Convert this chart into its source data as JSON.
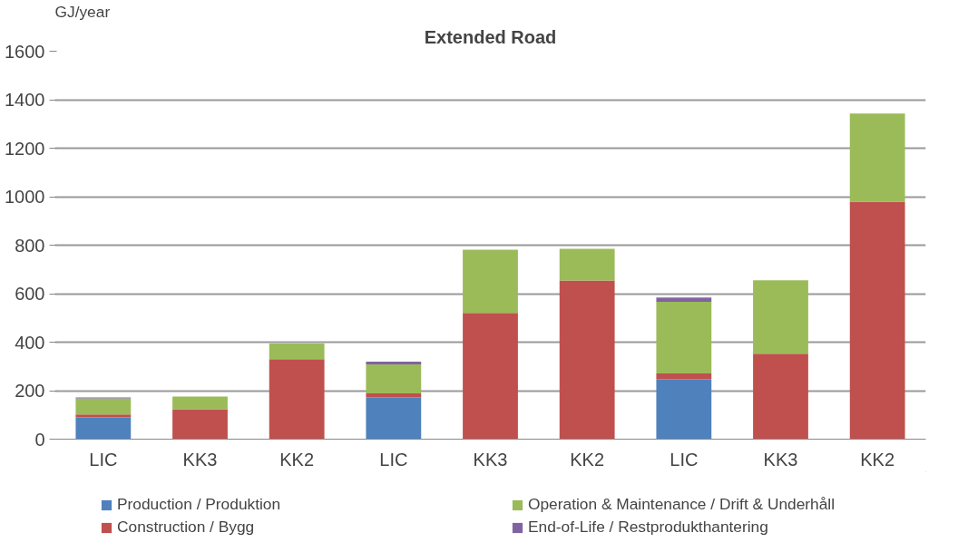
{
  "chart_data": {
    "type": "bar",
    "stacked": true,
    "title": "Extended Road",
    "ylabel": "GJ/year",
    "categories": [
      "LIC",
      "KK3",
      "KK2",
      "LIC",
      "KK3",
      "KK2",
      "LIC",
      "KK3",
      "KK2"
    ],
    "series": [
      {
        "name": "Production / Produktion",
        "color": "#4f81bd",
        "values": [
          90,
          null,
          null,
          172,
          null,
          null,
          247,
          null,
          null
        ]
      },
      {
        "name": "Construction / Bygg",
        "color": "#c0504d",
        "values": [
          12,
          123,
          330,
          17,
          521,
          654,
          24,
          352,
          979
        ]
      },
      {
        "name": "Operation & Maintenance / Drift & Underhåll",
        "color": "#9bbb59",
        "values": [
          66,
          53,
          64,
          119,
          260,
          131,
          295,
          303,
          364
        ]
      },
      {
        "name": "End-of-Life / Restprodukthantering",
        "color": "#8064a2",
        "values": [
          4,
          null,
          null,
          12,
          null,
          null,
          18,
          null,
          null
        ]
      }
    ],
    "ylim": [
      0,
      1600
    ],
    "yticks": [
      0,
      200,
      400,
      600,
      800,
      1000,
      1200,
      1400,
      1600
    ],
    "grid": "y",
    "legend": "bottom"
  }
}
